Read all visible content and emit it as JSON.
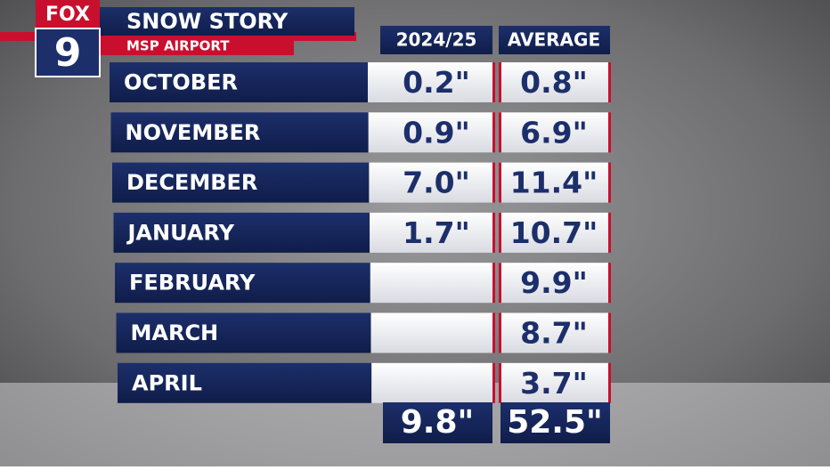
{
  "header": {
    "logo_top": "FOX",
    "logo_bottom": "9",
    "title": "SNOW STORY",
    "subtitle": "MSP AIRPORT"
  },
  "table": {
    "columns": [
      "2024/25",
      "AVERAGE"
    ],
    "rows": [
      [
        "OCTOBER",
        "0.2\"",
        "0.8\""
      ],
      [
        "NOVEMBER",
        "0.9\"",
        "6.9\""
      ],
      [
        "DECEMBER",
        "7.0\"",
        "11.4\""
      ],
      [
        "JANUARY",
        "1.7\"",
        "10.7\""
      ],
      [
        "FEBRUARY",
        null,
        "9.9\""
      ],
      [
        "MARCH",
        null,
        "8.7\""
      ],
      [
        "APRIL",
        null,
        "3.7\""
      ]
    ],
    "totals": [
      "9.8\"",
      "52.5\""
    ]
  }
}
